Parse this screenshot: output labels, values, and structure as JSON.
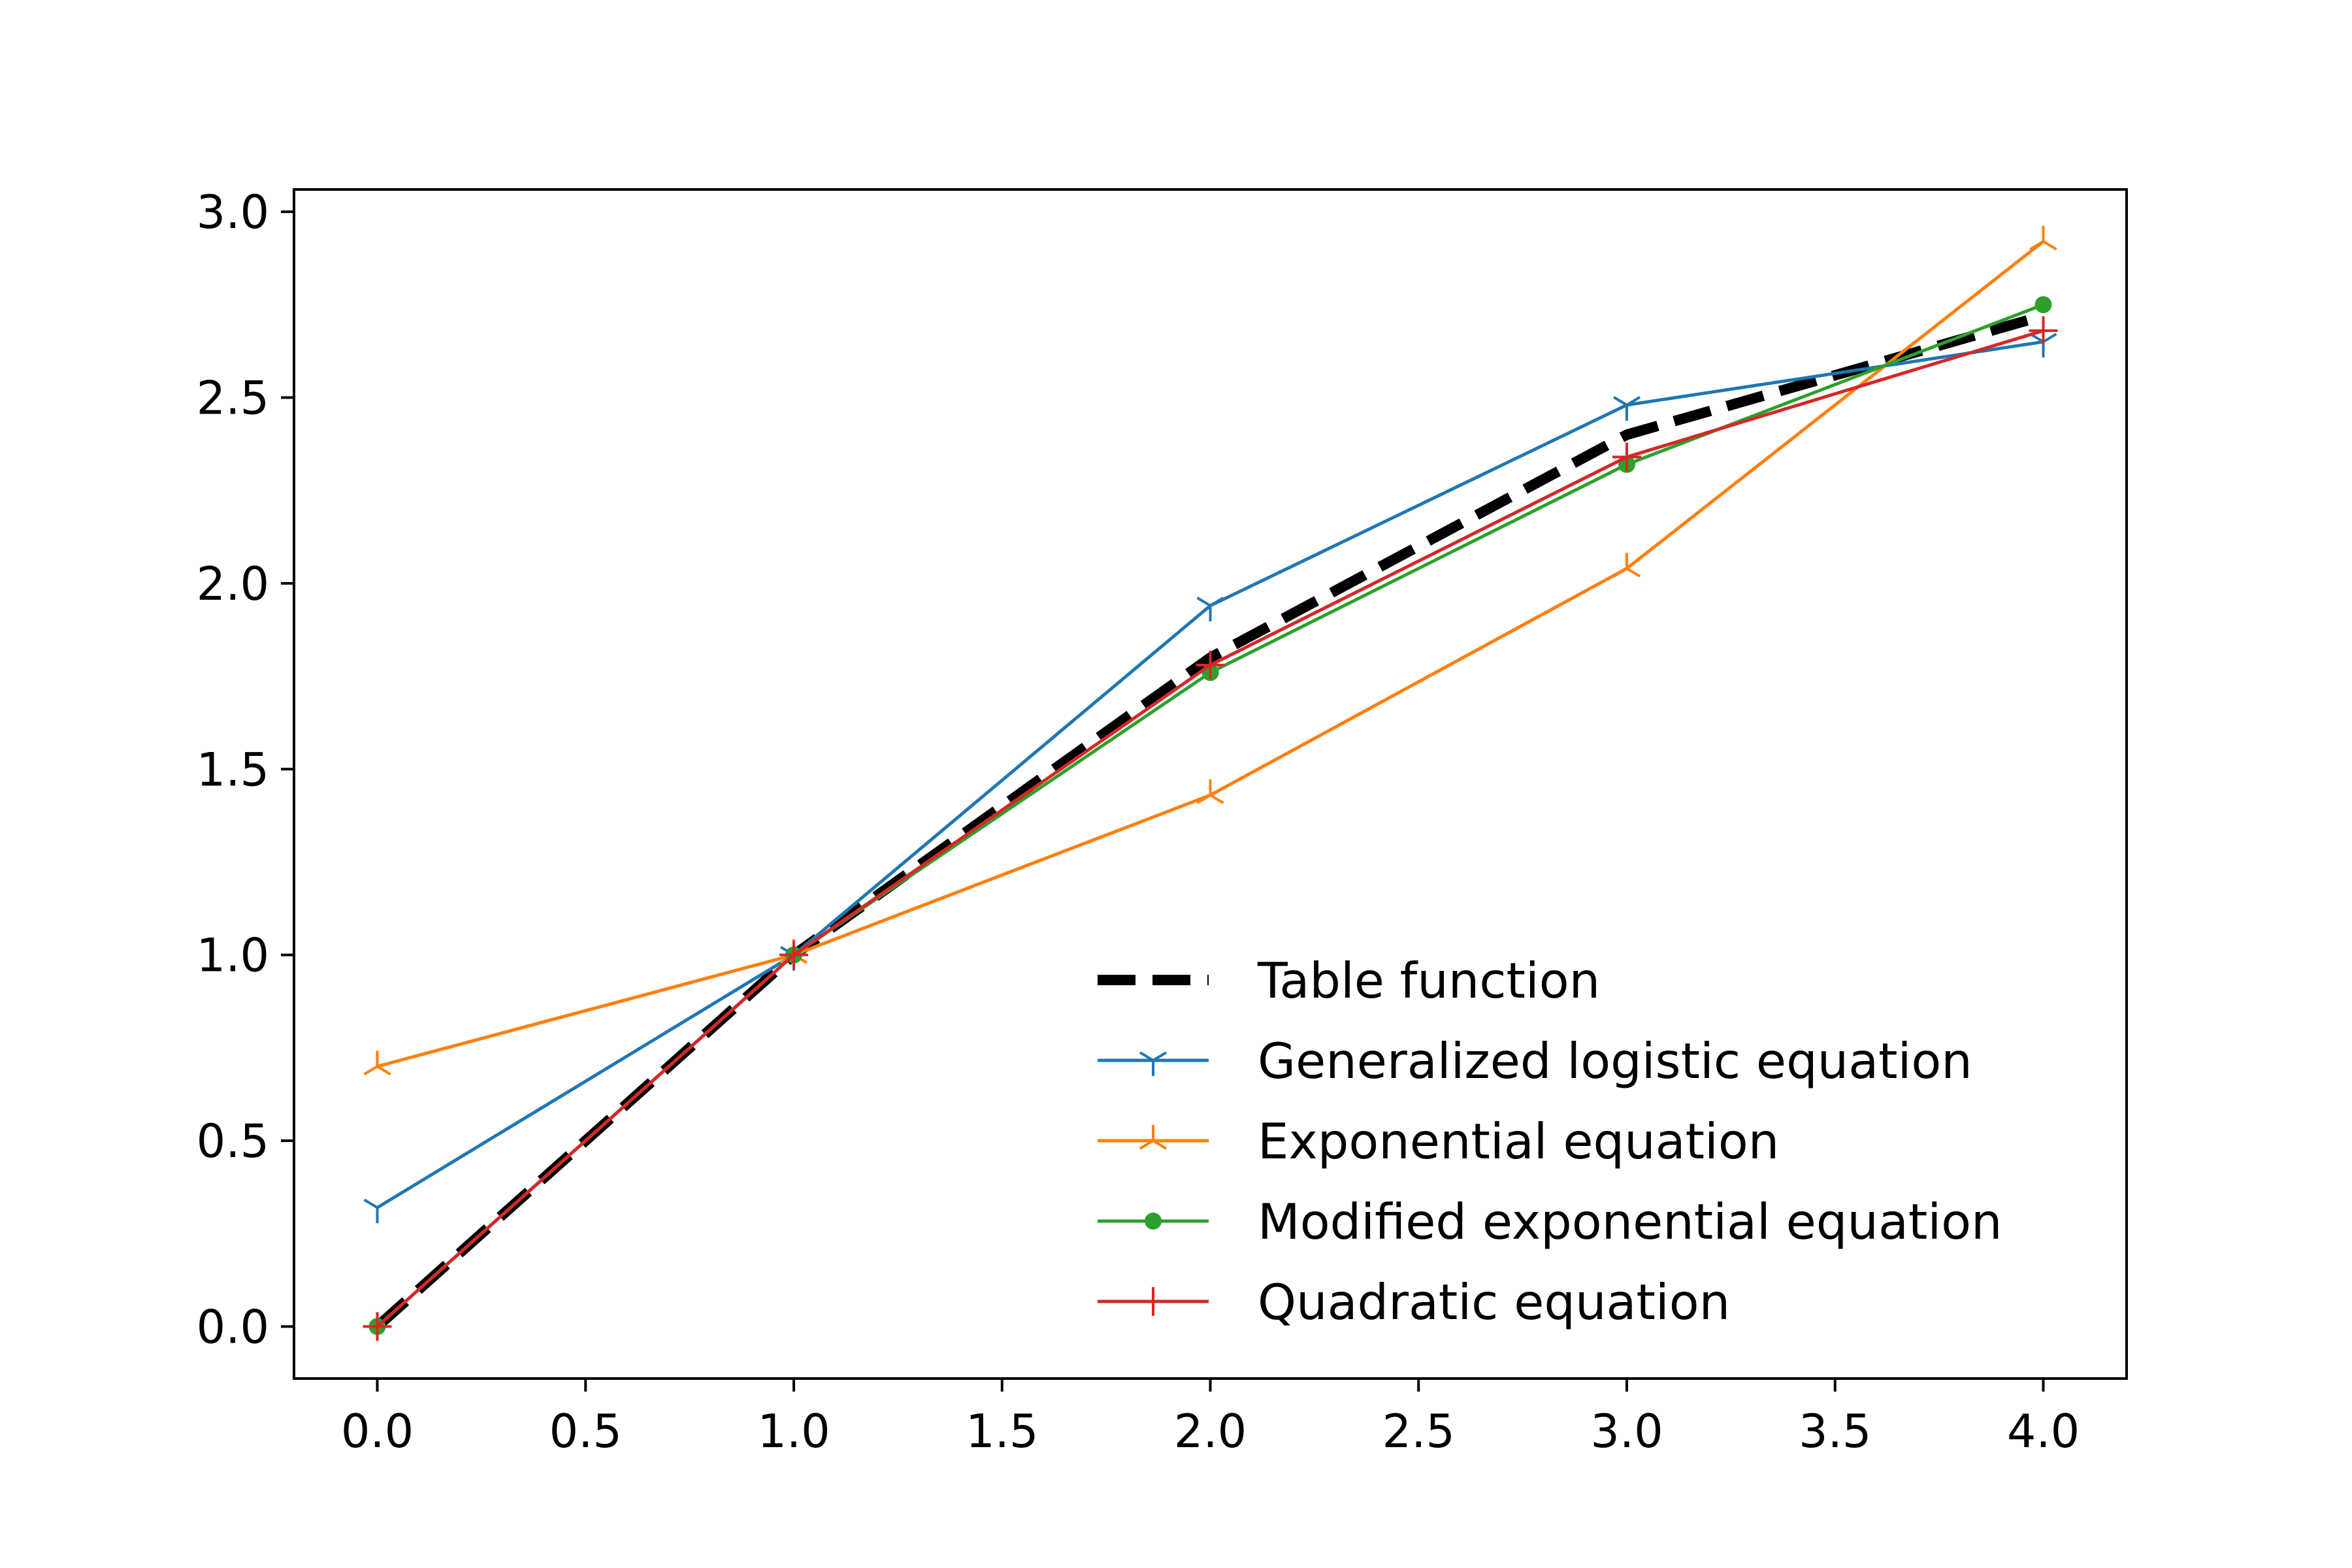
{
  "chart_data": {
    "type": "line",
    "title": "",
    "xlabel": "",
    "ylabel": "",
    "xlim": [
      -0.2,
      4.2
    ],
    "ylim": [
      -0.14,
      3.06
    ],
    "x_ticks": [
      0.0,
      0.5,
      1.0,
      1.5,
      2.0,
      2.5,
      3.0,
      3.5,
      4.0
    ],
    "x_tick_labels": [
      "0.0",
      "0.5",
      "1.0",
      "1.5",
      "2.0",
      "2.5",
      "3.0",
      "3.5",
      "4.0"
    ],
    "y_ticks": [
      0.0,
      0.5,
      1.0,
      1.5,
      2.0,
      2.5,
      3.0
    ],
    "y_tick_labels": [
      "0.0",
      "0.5",
      "1.0",
      "1.5",
      "2.0",
      "2.5",
      "3.0"
    ],
    "grid": false,
    "legend_position": "lower-right",
    "x": [
      0,
      1,
      2,
      3,
      4
    ],
    "series": [
      {
        "name": "Table function",
        "color": "#000000",
        "style": "dashed",
        "marker": "none",
        "values": [
          0.0,
          1.0,
          1.8,
          2.4,
          2.72
        ]
      },
      {
        "name": "Generalized logistic equation",
        "color": "#1f77b4",
        "style": "solid",
        "marker": "tri-down",
        "values": [
          0.32,
          1.0,
          1.94,
          2.48,
          2.65
        ]
      },
      {
        "name": "Exponential equation",
        "color": "#ff7f0e",
        "style": "solid",
        "marker": "tri-up",
        "values": [
          0.7,
          1.0,
          1.43,
          2.04,
          2.92
        ]
      },
      {
        "name": "Modified exponential equation",
        "color": "#2ca02c",
        "style": "solid",
        "marker": "dot",
        "values": [
          0.0,
          1.0,
          1.76,
          2.32,
          2.75
        ]
      },
      {
        "name": "Quadratic equation",
        "color": "#d62728",
        "style": "solid",
        "marker": "plus",
        "values": [
          0.0,
          1.0,
          1.78,
          2.34,
          2.68
        ]
      }
    ]
  }
}
